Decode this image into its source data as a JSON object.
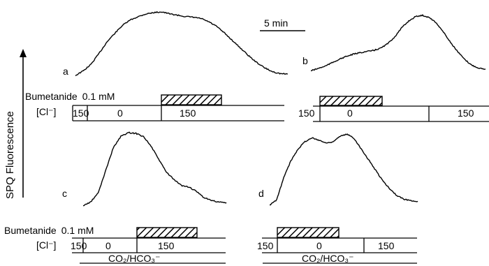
{
  "figure": {
    "y_axis_title": "SPQ Fluorescence",
    "scale_bar_label": "5 min",
    "bumetanide_label": "Bumetanide",
    "bumetanide_conc": "0.1 mM",
    "cl_label": "[Cl⁻]",
    "co2_label": "CO₂/HCO₃⁻"
  },
  "chart_data": [
    {
      "type": "line",
      "panel": "a",
      "x_unit": "min",
      "y_unit": "arbitrary",
      "series": [
        {
          "x": [
            0,
            1,
            2,
            3,
            4,
            5,
            6,
            7,
            8,
            9,
            10,
            11,
            12,
            13,
            14,
            15,
            16,
            17,
            18,
            19,
            20,
            21,
            22,
            23,
            24,
            25,
            26,
            27
          ],
          "values": [
            0.05,
            0.12,
            0.22,
            0.38,
            0.55,
            0.68,
            0.8,
            0.88,
            0.93,
            0.97,
            0.99,
            1.0,
            0.97,
            0.95,
            0.93,
            0.92,
            0.9,
            0.85,
            0.78,
            0.68,
            0.57,
            0.46,
            0.35,
            0.25,
            0.17,
            0.11,
            0.08,
            0.07
          ]
        }
      ],
      "cl_segments": [
        {
          "label": "150",
          "start": 0,
          "end": 1.6
        },
        {
          "label": "0",
          "start": 1.6,
          "end": 9.6
        },
        {
          "label": "150",
          "start": 9.6,
          "end": 24.4
        }
      ],
      "bumetanide": {
        "start": 9.6,
        "end": 16.0
      }
    },
    {
      "type": "line",
      "panel": "b",
      "x_unit": "min",
      "y_unit": "arbitrary",
      "series": [
        {
          "x": [
            0,
            1,
            2,
            3,
            4,
            5,
            6,
            7,
            8,
            9,
            10,
            11,
            12,
            13,
            14,
            15,
            16,
            17,
            18,
            19,
            20,
            21,
            22,
            23,
            24,
            25
          ],
          "values": [
            0.02,
            0.06,
            0.1,
            0.16,
            0.22,
            0.27,
            0.31,
            0.34,
            0.36,
            0.38,
            0.42,
            0.5,
            0.62,
            0.78,
            0.9,
            0.98,
            1.0,
            0.96,
            0.86,
            0.7,
            0.52,
            0.36,
            0.22,
            0.12,
            0.07,
            0.05
          ]
        }
      ],
      "cl_segments": [
        {
          "label": "150",
          "start": 0,
          "end": 0.6
        },
        {
          "label": "0",
          "start": 0.6,
          "end": 12.3
        },
        {
          "label": "150",
          "start": 12.3,
          "end": 17.5
        }
      ],
      "bumetanide": {
        "start": 0.6,
        "end": 7.3
      }
    },
    {
      "type": "line",
      "panel": "c",
      "x_unit": "min",
      "y_unit": "arbitrary",
      "series": [
        {
          "x": [
            0,
            1,
            2,
            3,
            4,
            5,
            6,
            7,
            8,
            9,
            10,
            11,
            12,
            13,
            14,
            15,
            16,
            17,
            18,
            19
          ],
          "values": [
            0.03,
            0.08,
            0.2,
            0.5,
            0.8,
            0.95,
            1.0,
            0.99,
            0.95,
            0.82,
            0.65,
            0.48,
            0.38,
            0.3,
            0.28,
            0.22,
            0.14,
            0.1,
            0.08,
            0.07
          ]
        }
      ],
      "cl_segments": [
        {
          "label": "150",
          "start": 0,
          "end": 1.5
        },
        {
          "label": "0",
          "start": 1.5,
          "end": 7.3
        },
        {
          "label": "150",
          "start": 7.3,
          "end": 17.9
        }
      ],
      "bumetanide": {
        "start": 7.3,
        "end": 13.5
      }
    },
    {
      "type": "line",
      "panel": "d",
      "x_unit": "min",
      "y_unit": "arbitrary",
      "series": [
        {
          "x": [
            0,
            1,
            2,
            3,
            4,
            5,
            6,
            7,
            8,
            9,
            10,
            11,
            12,
            13,
            14,
            15,
            16,
            17,
            18,
            19,
            20,
            21
          ],
          "values": [
            0.03,
            0.1,
            0.4,
            0.62,
            0.78,
            0.88,
            0.93,
            0.9,
            0.86,
            0.88,
            0.95,
            0.98,
            0.92,
            0.78,
            0.64,
            0.5,
            0.36,
            0.25,
            0.16,
            0.11,
            0.09,
            0.08
          ]
        }
      ],
      "cl_segments": [
        {
          "label": "150",
          "start": 0,
          "end": 1.7
        },
        {
          "label": "0",
          "start": 1.7,
          "end": 10.9
        },
        {
          "label": "150",
          "start": 10.9,
          "end": 16.7
        }
      ],
      "bumetanide": {
        "start": 1.7,
        "end": 8.1
      }
    }
  ]
}
